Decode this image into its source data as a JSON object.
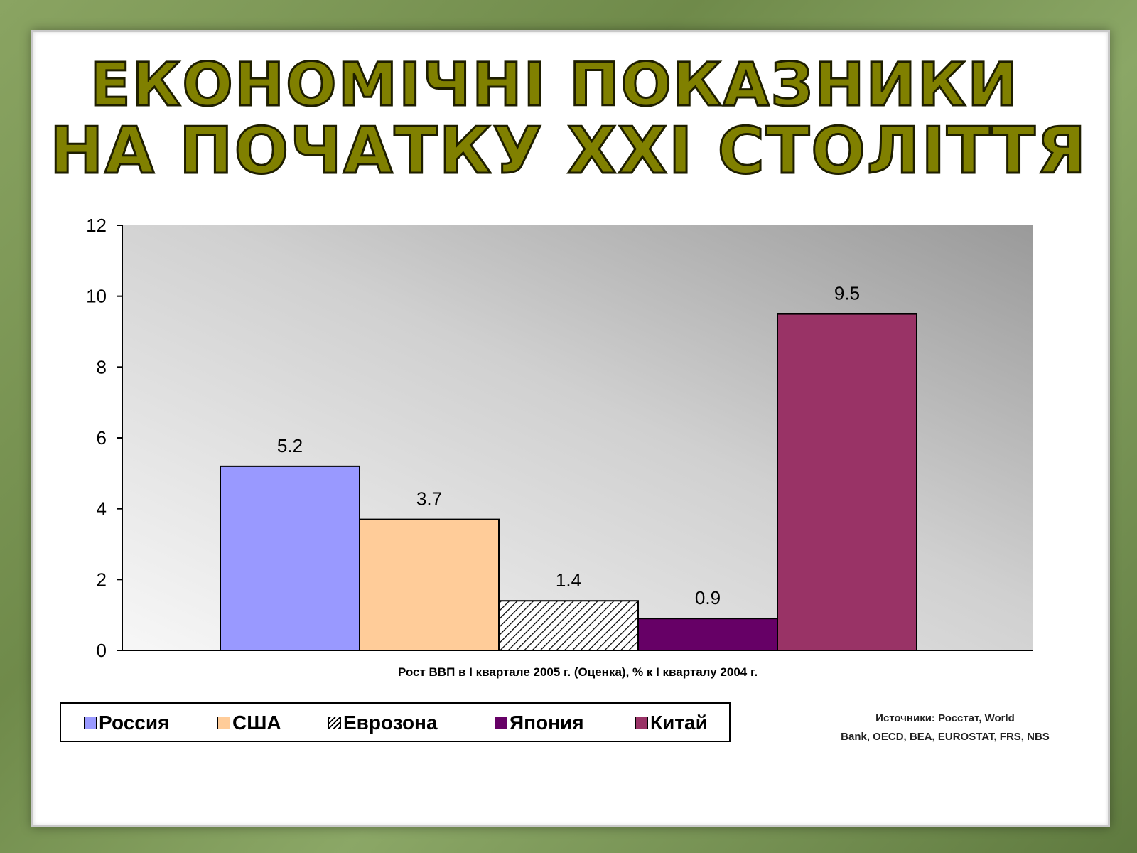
{
  "title": {
    "line1": "ЕКОНОМІЧНІ ПОКАЗНИКИ",
    "line2": "НА ПОЧАТКУ XXI СТОЛІТТЯ"
  },
  "chart_data": {
    "type": "bar",
    "categories": [
      "Россия",
      "США",
      "Еврозона",
      "Япония",
      "Китай"
    ],
    "values": [
      5.2,
      3.7,
      1.4,
      0.9,
      9.5
    ],
    "data_labels": [
      "5.2",
      "3.7",
      "1.4",
      "0.9",
      "9.5"
    ],
    "colors": [
      "#9999ff",
      "#ffcc99",
      "hatch",
      "#660066",
      "#993366"
    ],
    "xlabel": "Рост ВВП в I квартале 2005 г. (Оценка), % к I кварталу 2004 г.",
    "ylabel": "",
    "ylim": [
      0,
      12
    ],
    "yticks": [
      0,
      2,
      4,
      6,
      8,
      10,
      12
    ],
    "grid": false,
    "legend": {
      "placement": "bottom-left",
      "entries": [
        "Россия",
        "США",
        "Еврозона",
        "Япония",
        "Китай"
      ]
    }
  },
  "sources": {
    "line1": "Источники: Росстат, World",
    "line2": "Bank, OECD, BEA, EUROSTAT, FRS, NBS"
  }
}
